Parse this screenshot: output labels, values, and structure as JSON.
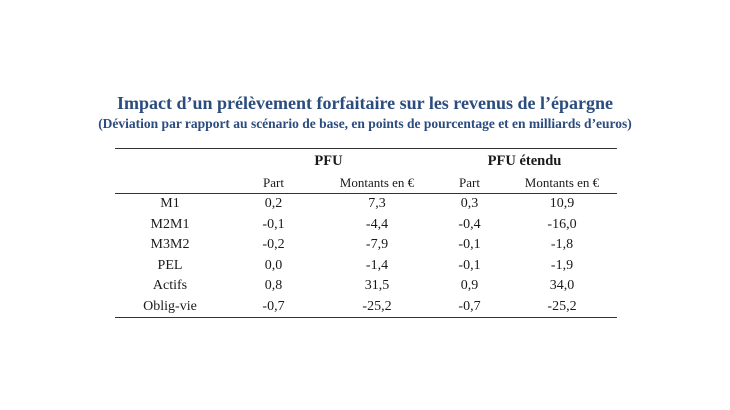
{
  "title": "Impact d’un prélèvement forfaitaire sur les revenus de l’épargne",
  "subtitle": "(Déviation par rapport au scénario de base, en points de pourcentage et en milliards d’euros)",
  "table": {
    "groups": [
      "PFU",
      "PFU étendu"
    ],
    "subheaders": [
      "Part",
      "Montants en €",
      "Part",
      "Montants en €"
    ],
    "rows": [
      {
        "label": "M1",
        "pfu_part": "0,2",
        "pfu_montant": "7,3",
        "ext_part": "0,3",
        "ext_montant": "10,9"
      },
      {
        "label": "M2M1",
        "pfu_part": "-0,1",
        "pfu_montant": "-4,4",
        "ext_part": "-0,4",
        "ext_montant": "-16,0"
      },
      {
        "label": "M3M2",
        "pfu_part": "-0,2",
        "pfu_montant": "-7,9",
        "ext_part": "-0,1",
        "ext_montant": "-1,8"
      },
      {
        "label": "PEL",
        "pfu_part": "0,0",
        "pfu_montant": "-1,4",
        "ext_part": "-0,1",
        "ext_montant": "-1,9"
      },
      {
        "label": "Actifs",
        "pfu_part": "0,8",
        "pfu_montant": "31,5",
        "ext_part": "0,9",
        "ext_montant": "34,0"
      },
      {
        "label": "Oblig-vie",
        "pfu_part": "-0,7",
        "pfu_montant": "-25,2",
        "ext_part": "-0,7",
        "ext_montant": "-25,2"
      }
    ]
  }
}
